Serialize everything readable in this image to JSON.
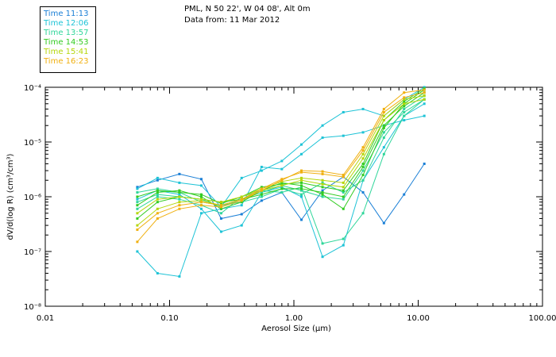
{
  "header": {
    "location": "PML, N 50 22', W 04 08', Alt 0m",
    "date": "Data from: 11 Mar 2012"
  },
  "legend": [
    {
      "label": "Time 11:13",
      "color": "#1a7fd6"
    },
    {
      "label": "Time 12:06",
      "color": "#1ec3d6"
    },
    {
      "label": "Time 13:57",
      "color": "#2fd69a"
    },
    {
      "label": "Time 14:53",
      "color": "#33cc22"
    },
    {
      "label": "Time 15:41",
      "color": "#b5d60a"
    },
    {
      "label": "Time 16:23",
      "color": "#f0b010"
    }
  ],
  "chart_data": {
    "type": "line",
    "title": "",
    "xlabel": "Aerosol Size (μm)",
    "ylabel": "dV/d(log R) (cm³/cm³)",
    "xscale": "log",
    "yscale": "log",
    "xlim": [
      0.01,
      100
    ],
    "ylim": [
      1e-08,
      0.0001
    ],
    "x_ticks": [
      "0.01",
      "0.10",
      "1.00",
      "10.00",
      "100.00"
    ],
    "y_ticks": [
      "10⁻⁸",
      "10⁻⁷",
      "10⁻⁶",
      "10⁻⁵",
      "10⁻⁴"
    ],
    "grid": false,
    "legend_position": "top-left",
    "x": [
      0.055,
      0.08,
      0.12,
      0.18,
      0.26,
      0.38,
      0.55,
      0.8,
      1.15,
      1.7,
      2.5,
      3.6,
      5.3,
      7.7,
      11.2
    ],
    "series": [
      {
        "color": "#1a7fd6",
        "values": [
          1.5e-06,
          2e-06,
          2.6e-06,
          2.1e-06,
          4e-07,
          4.8e-07,
          8.5e-07,
          1.2e-06,
          3.8e-07,
          1.3e-06,
          2.3e-06,
          1.2e-06,
          3.3e-07,
          1.1e-06,
          4e-06
        ]
      },
      {
        "color": "#1ec3d6",
        "values": [
          1.4e-06,
          2.2e-06,
          1.8e-06,
          1.6e-06,
          6.5e-07,
          2.2e-06,
          3e-06,
          4.5e-06,
          9e-06,
          2e-05,
          3.5e-05,
          4e-05,
          3e-05,
          6e-05,
          0.0001
        ]
      },
      {
        "color": "#1ec3d6",
        "values": [
          1e-07,
          4e-08,
          3.5e-08,
          5e-07,
          6e-07,
          7e-07,
          3.5e-06,
          3.2e-06,
          6e-06,
          1.2e-05,
          1.3e-05,
          1.5e-05,
          2e-05,
          2.5e-05,
          3e-05
        ]
      },
      {
        "color": "#1ec3d6",
        "values": [
          9e-07,
          1.3e-06,
          1.1e-06,
          6e-07,
          2.3e-07,
          3e-07,
          1.2e-06,
          1.5e-06,
          1e-06,
          8e-08,
          1.3e-07,
          2e-06,
          8e-06,
          3e-05,
          5e-05
        ]
      },
      {
        "color": "#2fd69a",
        "values": [
          6e-07,
          1e-06,
          9e-07,
          7e-07,
          5e-07,
          1e-06,
          1.3e-06,
          1.2e-06,
          1.5e-06,
          1.4e-07,
          1.7e-07,
          5e-07,
          6e-06,
          3e-05,
          6e-05
        ]
      },
      {
        "color": "#2fd69a",
        "values": [
          1.2e-06,
          1.4e-06,
          1.2e-06,
          8e-07,
          7e-07,
          8e-07,
          1e-06,
          1.4e-06,
          1.1e-06,
          1.8e-06,
          1.2e-06,
          2e-06,
          1.2e-05,
          4e-05,
          7e-05
        ]
      },
      {
        "color": "#2fd69a",
        "values": [
          8e-07,
          1.1e-06,
          1e-06,
          9e-07,
          6.5e-07,
          9e-07,
          1.2e-06,
          1.6e-06,
          1.3e-06,
          1e-06,
          9e-07,
          3e-06,
          1.5e-05,
          3.5e-05,
          6e-05
        ]
      },
      {
        "color": "#33cc22",
        "values": [
          4e-07,
          8e-07,
          1e-06,
          9e-07,
          8e-07,
          9e-07,
          1.1e-06,
          1.4e-06,
          1.4e-06,
          1.2e-06,
          1e-06,
          3.5e-06,
          2e-05,
          4.5e-05,
          8e-05
        ]
      },
      {
        "color": "#33cc22",
        "values": [
          7e-07,
          1.2e-06,
          1.3e-06,
          1e-06,
          6e-07,
          8e-07,
          1.3e-06,
          1.8e-06,
          1.6e-06,
          1.1e-06,
          6e-07,
          2.5e-06,
          1.8e-05,
          5e-05,
          9e-05
        ]
      },
      {
        "color": "#33cc22",
        "values": [
          1e-06,
          1.3e-06,
          1.2e-06,
          1.1e-06,
          7.5e-07,
          1e-06,
          1.5e-06,
          1.7e-06,
          1.8e-06,
          1.5e-06,
          1.3e-06,
          4e-06,
          2.5e-05,
          5.5e-05,
          9.5e-05
        ]
      },
      {
        "color": "#b5d60a",
        "values": [
          3e-07,
          6e-07,
          8e-07,
          8.5e-07,
          7e-07,
          9e-07,
          1.3e-06,
          1.6e-06,
          2e-06,
          1.7e-06,
          1.5e-06,
          5e-06,
          2.5e-05,
          5e-05,
          6e-05
        ]
      },
      {
        "color": "#b5d60a",
        "values": [
          5e-07,
          9e-07,
          1e-06,
          9e-07,
          8e-07,
          1e-06,
          1.4e-06,
          1.9e-06,
          2.2e-06,
          2e-06,
          1.8e-06,
          6e-06,
          3e-05,
          6e-05,
          7e-05
        ]
      },
      {
        "color": "#f0b010",
        "values": [
          2.5e-07,
          5e-07,
          7e-07,
          8e-07,
          7e-07,
          9e-07,
          1.4e-06,
          2.1e-06,
          2.8e-06,
          2.6e-06,
          2.3e-06,
          7e-06,
          3.5e-05,
          6.5e-05,
          8e-05
        ]
      },
      {
        "color": "#f0b010",
        "values": [
          1.5e-07,
          4e-07,
          6e-07,
          7e-07,
          6.5e-07,
          8.5e-07,
          1.3e-06,
          2e-06,
          3e-06,
          2.9e-06,
          2.5e-06,
          8e-06,
          4e-05,
          8e-05,
          9e-05
        ]
      }
    ]
  }
}
